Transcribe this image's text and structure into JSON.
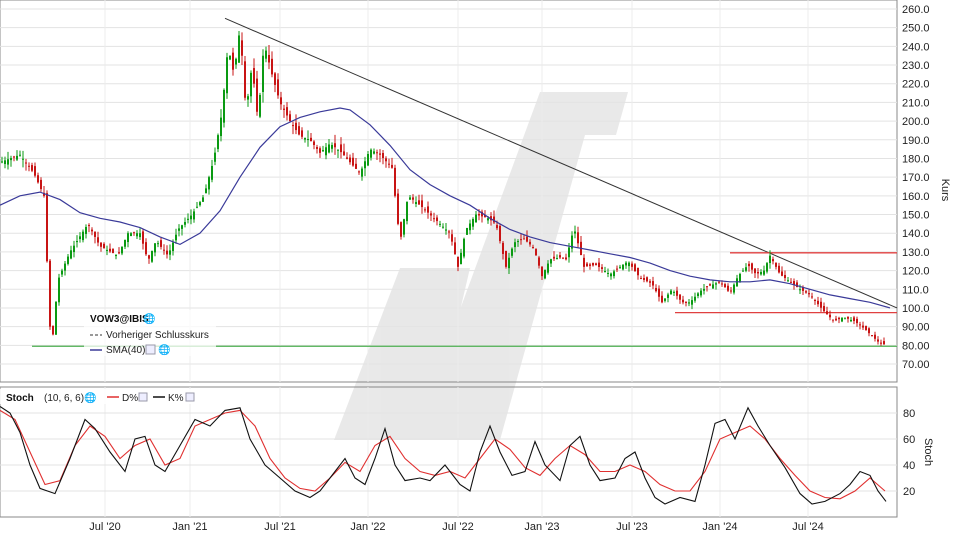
{
  "chart_data": [
    {
      "type": "candlestick",
      "symbol": "VOW3@IBIS",
      "ylabel": "Kurs",
      "ylim": [
        60,
        262
      ],
      "yticks": [
        "70.00",
        "80.00",
        "90.00",
        "100.0",
        "110.0",
        "120.0",
        "130.0",
        "140.0",
        "150.0",
        "160.0",
        "170.0",
        "180.0",
        "190.0",
        "200.0",
        "210.0",
        "220.0",
        "230.0",
        "240.0",
        "250.0",
        "260.0"
      ],
      "xticks": [
        "Jul '20",
        "Jan '21",
        "Jul '21",
        "Jan '22",
        "Jul '22",
        "Jan '23",
        "Jul '23",
        "Jan '24",
        "Jul '24"
      ],
      "price_path": [
        [
          0,
          178
        ],
        [
          20,
          182
        ],
        [
          34,
          172
        ],
        [
          44,
          160
        ],
        [
          50,
          90
        ],
        [
          52,
          80
        ],
        [
          58,
          115
        ],
        [
          70,
          130
        ],
        [
          88,
          145
        ],
        [
          100,
          133
        ],
        [
          118,
          128
        ],
        [
          128,
          140
        ],
        [
          140,
          140
        ],
        [
          148,
          125
        ],
        [
          156,
          136
        ],
        [
          168,
          128
        ],
        [
          178,
          142
        ],
        [
          192,
          150
        ],
        [
          204,
          160
        ],
        [
          214,
          180
        ],
        [
          222,
          205
        ],
        [
          228,
          240
        ],
        [
          234,
          225
        ],
        [
          240,
          250
        ],
        [
          246,
          205
        ],
        [
          252,
          230
        ],
        [
          258,
          200
        ],
        [
          264,
          242
        ],
        [
          272,
          225
        ],
        [
          280,
          210
        ],
        [
          290,
          200
        ],
        [
          300,
          192
        ],
        [
          310,
          190
        ],
        [
          320,
          183
        ],
        [
          330,
          188
        ],
        [
          340,
          184
        ],
        [
          350,
          178
        ],
        [
          360,
          172
        ],
        [
          370,
          185
        ],
        [
          380,
          182
        ],
        [
          392,
          175
        ],
        [
          400,
          135
        ],
        [
          408,
          160
        ],
        [
          420,
          155
        ],
        [
          430,
          150
        ],
        [
          440,
          145
        ],
        [
          450,
          140
        ],
        [
          458,
          122
        ],
        [
          466,
          142
        ],
        [
          476,
          150
        ],
        [
          488,
          148
        ],
        [
          496,
          145
        ],
        [
          506,
          122
        ],
        [
          514,
          135
        ],
        [
          524,
          137
        ],
        [
          534,
          132
        ],
        [
          542,
          117
        ],
        [
          550,
          126
        ],
        [
          560,
          127
        ],
        [
          566,
          126
        ],
        [
          574,
          143
        ],
        [
          584,
          122
        ],
        [
          596,
          123
        ],
        [
          610,
          118
        ],
        [
          620,
          122
        ],
        [
          628,
          125
        ],
        [
          640,
          116
        ],
        [
          652,
          113
        ],
        [
          662,
          103
        ],
        [
          672,
          110
        ],
        [
          682,
          103
        ],
        [
          690,
          103
        ],
        [
          700,
          109
        ],
        [
          710,
          112
        ],
        [
          720,
          114
        ],
        [
          730,
          108
        ],
        [
          738,
          117
        ],
        [
          748,
          123
        ],
        [
          756,
          118
        ],
        [
          764,
          120
        ],
        [
          770,
          128
        ],
        [
          780,
          118
        ],
        [
          790,
          114
        ],
        [
          800,
          110
        ],
        [
          810,
          107
        ],
        [
          818,
          102
        ],
        [
          826,
          97
        ],
        [
          834,
          93
        ],
        [
          844,
          95
        ],
        [
          854,
          93
        ],
        [
          862,
          90
        ],
        [
          870,
          86
        ],
        [
          878,
          82
        ],
        [
          886,
          80
        ]
      ],
      "sma_label": "SMA(40)",
      "sma": [
        [
          0,
          155
        ],
        [
          20,
          160
        ],
        [
          40,
          162
        ],
        [
          60,
          158
        ],
        [
          80,
          151
        ],
        [
          100,
          148
        ],
        [
          120,
          146
        ],
        [
          140,
          143
        ],
        [
          160,
          138
        ],
        [
          180,
          134
        ],
        [
          200,
          140
        ],
        [
          220,
          152
        ],
        [
          240,
          170
        ],
        [
          260,
          186
        ],
        [
          280,
          197
        ],
        [
          300,
          202
        ],
        [
          320,
          205
        ],
        [
          340,
          207
        ],
        [
          350,
          206
        ],
        [
          370,
          198
        ],
        [
          390,
          187
        ],
        [
          410,
          174
        ],
        [
          430,
          166
        ],
        [
          450,
          160
        ],
        [
          470,
          155
        ],
        [
          490,
          148
        ],
        [
          510,
          142
        ],
        [
          530,
          138
        ],
        [
          550,
          135
        ],
        [
          570,
          133
        ],
        [
          590,
          131
        ],
        [
          610,
          129
        ],
        [
          630,
          127
        ],
        [
          650,
          124
        ],
        [
          670,
          120
        ],
        [
          690,
          117
        ],
        [
          710,
          115
        ],
        [
          730,
          114
        ],
        [
          750,
          114
        ],
        [
          770,
          115
        ],
        [
          790,
          113
        ],
        [
          810,
          110
        ],
        [
          830,
          107
        ],
        [
          850,
          105
        ],
        [
          870,
          103
        ],
        [
          890,
          100
        ]
      ],
      "trendline": {
        "x1": 225,
        "y1": 255,
        "x2": 897,
        "y2": 100
      },
      "resistance_lines": [
        {
          "x1": 730,
          "x2": 897,
          "y": 129.5
        },
        {
          "x1": 675,
          "x2": 897,
          "y": 97.5
        }
      ],
      "support_line": {
        "x1": 32,
        "x2": 897,
        "y": 79.5
      },
      "legend": {
        "title": "VOW3@IBIS",
        "items": [
          "Vorheriger Schlusskurs",
          "SMA(40)"
        ]
      },
      "colors": {
        "up": "#0a9a12",
        "down": "#c81414",
        "sma": "#3a3a99",
        "trend": "#333333",
        "resistance": "#e04040",
        "support": "#4caf50"
      }
    },
    {
      "type": "line",
      "title": "Stoch",
      "params": "(10, 6, 6)",
      "ylabel": "Stoch",
      "ylim": [
        0,
        98
      ],
      "yticks": [
        "20",
        "40",
        "60",
        "80"
      ],
      "series": [
        {
          "name": "D%",
          "color": "#e03030",
          "values": [
            [
              0,
              82
            ],
            [
              15,
              75
            ],
            [
              30,
              50
            ],
            [
              45,
              25
            ],
            [
              60,
              28
            ],
            [
              75,
              55
            ],
            [
              90,
              70
            ],
            [
              105,
              62
            ],
            [
              120,
              45
            ],
            [
              135,
              55
            ],
            [
              150,
              60
            ],
            [
              165,
              40
            ],
            [
              180,
              45
            ],
            [
              195,
              70
            ],
            [
              210,
              75
            ],
            [
              225,
              80
            ],
            [
              240,
              82
            ],
            [
              255,
              70
            ],
            [
              270,
              45
            ],
            [
              285,
              30
            ],
            [
              300,
              22
            ],
            [
              315,
              20
            ],
            [
              330,
              30
            ],
            [
              345,
              42
            ],
            [
              360,
              35
            ],
            [
              375,
              55
            ],
            [
              390,
              62
            ],
            [
              405,
              45
            ],
            [
              420,
              35
            ],
            [
              435,
              32
            ],
            [
              450,
              35
            ],
            [
              465,
              30
            ],
            [
              480,
              45
            ],
            [
              495,
              60
            ],
            [
              510,
              52
            ],
            [
              525,
              38
            ],
            [
              540,
              32
            ],
            [
              555,
              45
            ],
            [
              570,
              55
            ],
            [
              585,
              48
            ],
            [
              600,
              35
            ],
            [
              615,
              35
            ],
            [
              630,
              40
            ],
            [
              645,
              35
            ],
            [
              660,
              25
            ],
            [
              675,
              20
            ],
            [
              690,
              20
            ],
            [
              705,
              35
            ],
            [
              720,
              60
            ],
            [
              735,
              65
            ],
            [
              750,
              70
            ],
            [
              765,
              60
            ],
            [
              780,
              45
            ],
            [
              795,
              32
            ],
            [
              810,
              20
            ],
            [
              825,
              15
            ],
            [
              840,
              14
            ],
            [
              855,
              20
            ],
            [
              870,
              30
            ],
            [
              885,
              20
            ]
          ]
        },
        {
          "name": "K%",
          "color": "#111111",
          "values": [
            [
              0,
              85
            ],
            [
              10,
              80
            ],
            [
              20,
              65
            ],
            [
              30,
              40
            ],
            [
              40,
              22
            ],
            [
              55,
              18
            ],
            [
              70,
              45
            ],
            [
              85,
              75
            ],
            [
              95,
              68
            ],
            [
              110,
              50
            ],
            [
              125,
              35
            ],
            [
              135,
              60
            ],
            [
              145,
              62
            ],
            [
              155,
              40
            ],
            [
              165,
              35
            ],
            [
              180,
              55
            ],
            [
              195,
              75
            ],
            [
              210,
              70
            ],
            [
              225,
              82
            ],
            [
              240,
              84
            ],
            [
              250,
              60
            ],
            [
              265,
              40
            ],
            [
              280,
              30
            ],
            [
              295,
              20
            ],
            [
              310,
              15
            ],
            [
              320,
              20
            ],
            [
              335,
              35
            ],
            [
              345,
              45
            ],
            [
              355,
              30
            ],
            [
              365,
              25
            ],
            [
              375,
              45
            ],
            [
              385,
              68
            ],
            [
              395,
              40
            ],
            [
              405,
              28
            ],
            [
              420,
              30
            ],
            [
              430,
              28
            ],
            [
              445,
              40
            ],
            [
              460,
              25
            ],
            [
              470,
              20
            ],
            [
              480,
              50
            ],
            [
              490,
              70
            ],
            [
              500,
              50
            ],
            [
              512,
              32
            ],
            [
              525,
              35
            ],
            [
              535,
              58
            ],
            [
              545,
              40
            ],
            [
              560,
              28
            ],
            [
              570,
              55
            ],
            [
              580,
              62
            ],
            [
              590,
              40
            ],
            [
              600,
              28
            ],
            [
              615,
              30
            ],
            [
              625,
              45
            ],
            [
              635,
              50
            ],
            [
              645,
              30
            ],
            [
              655,
              15
            ],
            [
              665,
              10
            ],
            [
              680,
              15
            ],
            [
              695,
              12
            ],
            [
              705,
              40
            ],
            [
              715,
              72
            ],
            [
              725,
              75
            ],
            [
              735,
              60
            ],
            [
              748,
              84
            ],
            [
              758,
              70
            ],
            [
              770,
              55
            ],
            [
              785,
              38
            ],
            [
              800,
              18
            ],
            [
              812,
              10
            ],
            [
              825,
              12
            ],
            [
              840,
              18
            ],
            [
              850,
              25
            ],
            [
              860,
              35
            ],
            [
              870,
              32
            ],
            [
              878,
              20
            ],
            [
              886,
              12
            ]
          ]
        }
      ]
    }
  ]
}
